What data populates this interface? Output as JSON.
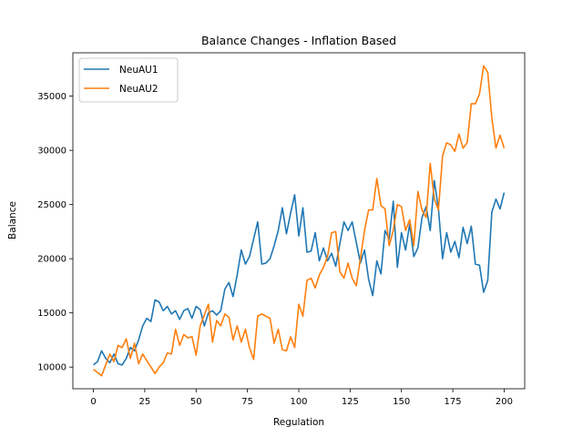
{
  "chart_data": {
    "type": "line",
    "title": "Balance Changes - Inflation Based",
    "xlabel": "Regulation",
    "ylabel": "Balance",
    "xlim": [
      -10,
      210
    ],
    "ylim": [
      8000,
      39000
    ],
    "xticks": [
      0,
      25,
      50,
      75,
      100,
      125,
      150,
      175,
      200
    ],
    "yticks": [
      10000,
      15000,
      20000,
      25000,
      30000,
      35000
    ],
    "grid": false,
    "legend_position": "top-left",
    "series": [
      {
        "name": "NeuAU1",
        "color": "#1f77b4",
        "points": [
          [
            0,
            10200
          ],
          [
            2,
            10500
          ],
          [
            4,
            11500
          ],
          [
            6,
            10800
          ],
          [
            8,
            10400
          ],
          [
            10,
            11200
          ],
          [
            12,
            10300
          ],
          [
            14,
            10200
          ],
          [
            16,
            10800
          ],
          [
            18,
            11800
          ],
          [
            20,
            11500
          ],
          [
            22,
            12500
          ],
          [
            24,
            13800
          ],
          [
            26,
            14500
          ],
          [
            28,
            14200
          ],
          [
            30,
            16200
          ],
          [
            32,
            16000
          ],
          [
            34,
            15200
          ],
          [
            36,
            15600
          ],
          [
            38,
            14900
          ],
          [
            40,
            15200
          ],
          [
            42,
            14400
          ],
          [
            44,
            15200
          ],
          [
            46,
            15400
          ],
          [
            48,
            14500
          ],
          [
            50,
            15600
          ],
          [
            52,
            15300
          ],
          [
            54,
            13800
          ],
          [
            56,
            15000
          ],
          [
            58,
            15200
          ],
          [
            60,
            14800
          ],
          [
            62,
            15200
          ],
          [
            64,
            17200
          ],
          [
            66,
            17800
          ],
          [
            68,
            16500
          ],
          [
            70,
            18500
          ],
          [
            72,
            20800
          ],
          [
            74,
            19500
          ],
          [
            76,
            20200
          ],
          [
            78,
            21800
          ],
          [
            80,
            23400
          ],
          [
            82,
            19500
          ],
          [
            84,
            19600
          ],
          [
            86,
            20000
          ],
          [
            88,
            21200
          ],
          [
            90,
            22600
          ],
          [
            92,
            24700
          ],
          [
            94,
            22300
          ],
          [
            96,
            24200
          ],
          [
            98,
            25900
          ],
          [
            100,
            22100
          ],
          [
            102,
            24700
          ],
          [
            104,
            20600
          ],
          [
            106,
            20700
          ],
          [
            108,
            22400
          ],
          [
            110,
            19800
          ],
          [
            112,
            21000
          ],
          [
            114,
            19800
          ],
          [
            116,
            20500
          ],
          [
            118,
            19300
          ],
          [
            120,
            21400
          ],
          [
            122,
            23400
          ],
          [
            124,
            22600
          ],
          [
            126,
            23400
          ],
          [
            128,
            21500
          ],
          [
            130,
            19600
          ],
          [
            132,
            20800
          ],
          [
            134,
            18100
          ],
          [
            136,
            16600
          ],
          [
            138,
            19800
          ],
          [
            140,
            18600
          ],
          [
            142,
            22600
          ],
          [
            144,
            21800
          ],
          [
            146,
            25300
          ],
          [
            148,
            19200
          ],
          [
            150,
            22400
          ],
          [
            152,
            20800
          ],
          [
            154,
            23200
          ],
          [
            156,
            20200
          ],
          [
            158,
            21000
          ],
          [
            160,
            23800
          ],
          [
            162,
            24800
          ],
          [
            164,
            22600
          ],
          [
            166,
            27200
          ],
          [
            168,
            24600
          ],
          [
            170,
            20000
          ],
          [
            172,
            22400
          ],
          [
            174,
            20600
          ],
          [
            176,
            21600
          ],
          [
            178,
            20100
          ],
          [
            180,
            22900
          ],
          [
            182,
            21400
          ],
          [
            184,
            23000
          ],
          [
            186,
            19500
          ],
          [
            188,
            19400
          ],
          [
            190,
            16900
          ],
          [
            192,
            18000
          ],
          [
            194,
            24300
          ],
          [
            196,
            25500
          ],
          [
            198,
            24600
          ],
          [
            200,
            26100
          ]
        ]
      },
      {
        "name": "NeuAU2",
        "color": "#ff7f0e",
        "points": [
          [
            0,
            9800
          ],
          [
            2,
            9500
          ],
          [
            4,
            9200
          ],
          [
            6,
            10200
          ],
          [
            8,
            11200
          ],
          [
            10,
            10500
          ],
          [
            12,
            12000
          ],
          [
            14,
            11800
          ],
          [
            16,
            12600
          ],
          [
            18,
            10800
          ],
          [
            20,
            12200
          ],
          [
            22,
            10300
          ],
          [
            24,
            11200
          ],
          [
            26,
            10600
          ],
          [
            28,
            10000
          ],
          [
            30,
            9400
          ],
          [
            32,
            10000
          ],
          [
            34,
            10400
          ],
          [
            36,
            11300
          ],
          [
            38,
            11200
          ],
          [
            40,
            13500
          ],
          [
            42,
            12000
          ],
          [
            44,
            13000
          ],
          [
            46,
            12700
          ],
          [
            48,
            12800
          ],
          [
            50,
            11100
          ],
          [
            52,
            13800
          ],
          [
            54,
            14800
          ],
          [
            56,
            15800
          ],
          [
            58,
            12300
          ],
          [
            60,
            14300
          ],
          [
            62,
            13800
          ],
          [
            64,
            14900
          ],
          [
            66,
            14600
          ],
          [
            68,
            12500
          ],
          [
            70,
            13800
          ],
          [
            72,
            12300
          ],
          [
            74,
            13500
          ],
          [
            76,
            11800
          ],
          [
            78,
            10700
          ],
          [
            80,
            14700
          ],
          [
            82,
            14900
          ],
          [
            84,
            14700
          ],
          [
            86,
            14500
          ],
          [
            88,
            12200
          ],
          [
            90,
            13500
          ],
          [
            92,
            11600
          ],
          [
            94,
            11500
          ],
          [
            96,
            12800
          ],
          [
            98,
            11800
          ],
          [
            100,
            15800
          ],
          [
            102,
            14700
          ],
          [
            104,
            18000
          ],
          [
            106,
            18200
          ],
          [
            108,
            17300
          ],
          [
            110,
            18500
          ],
          [
            112,
            19200
          ],
          [
            114,
            20200
          ],
          [
            116,
            22400
          ],
          [
            118,
            22500
          ],
          [
            120,
            18800
          ],
          [
            122,
            18200
          ],
          [
            124,
            19600
          ],
          [
            126,
            18200
          ],
          [
            128,
            17500
          ],
          [
            130,
            20000
          ],
          [
            132,
            22600
          ],
          [
            134,
            24500
          ],
          [
            136,
            24500
          ],
          [
            138,
            27400
          ],
          [
            140,
            24900
          ],
          [
            142,
            24600
          ],
          [
            144,
            21200
          ],
          [
            146,
            22600
          ],
          [
            148,
            25000
          ],
          [
            150,
            24800
          ],
          [
            152,
            22600
          ],
          [
            154,
            23600
          ],
          [
            156,
            21200
          ],
          [
            158,
            26200
          ],
          [
            160,
            24500
          ],
          [
            162,
            23800
          ],
          [
            164,
            28800
          ],
          [
            166,
            25500
          ],
          [
            168,
            24500
          ],
          [
            170,
            29500
          ],
          [
            172,
            30700
          ],
          [
            174,
            30500
          ],
          [
            176,
            29900
          ],
          [
            178,
            31500
          ],
          [
            180,
            30200
          ],
          [
            182,
            30700
          ],
          [
            184,
            34300
          ],
          [
            186,
            34300
          ],
          [
            188,
            35200
          ],
          [
            190,
            37800
          ],
          [
            192,
            37200
          ],
          [
            194,
            33000
          ],
          [
            196,
            30200
          ],
          [
            198,
            31400
          ],
          [
            200,
            30200
          ]
        ]
      }
    ]
  }
}
